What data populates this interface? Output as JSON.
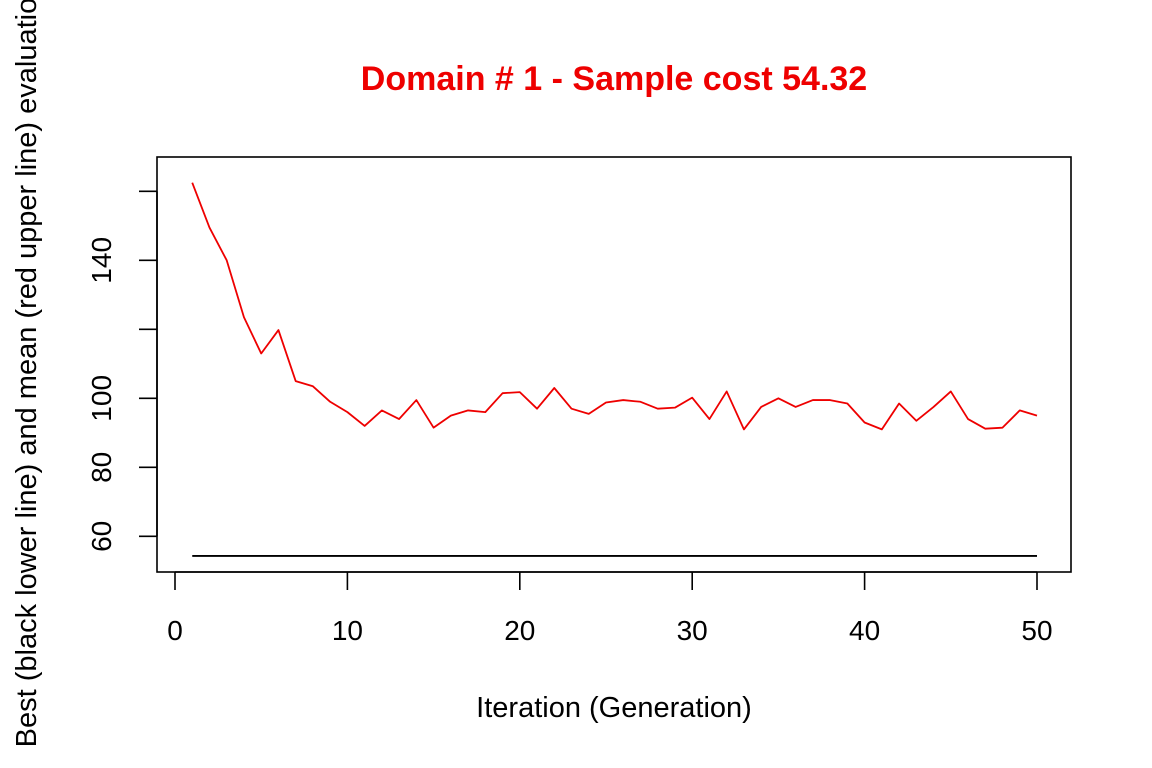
{
  "chart_data": {
    "type": "line",
    "title": "Domain # 1  - Sample cost 54.32",
    "xlabel": "Iteration (Generation)",
    "ylabel": "Best (black lower line) and mean (red upper line) evaluation",
    "xlim": [
      0,
      50
    ],
    "ylim": [
      54.3,
      163
    ],
    "xticks": [
      0,
      10,
      20,
      30,
      40,
      50
    ],
    "yticks": [
      60,
      80,
      100,
      140
    ],
    "grid": false,
    "colors": {
      "title": "#ee0000",
      "mean": "#ee0000",
      "best": "#000000"
    },
    "x": [
      1,
      2,
      3,
      4,
      5,
      6,
      7,
      8,
      9,
      10,
      11,
      12,
      13,
      14,
      15,
      16,
      17,
      18,
      19,
      20,
      21,
      22,
      23,
      24,
      25,
      26,
      27,
      28,
      29,
      30,
      31,
      32,
      33,
      34,
      35,
      36,
      37,
      38,
      39,
      40,
      41,
      42,
      43,
      44,
      45,
      46,
      47,
      48,
      49,
      50
    ],
    "series": [
      {
        "color": "#ee0000",
        "values": [
          162.5,
          149.5,
          140,
          123.5,
          113,
          119.8,
          105,
          103.5,
          99,
          96,
          92,
          96.5,
          94,
          99.5,
          91.5,
          95,
          96.5,
          96,
          101.5,
          101.8,
          97,
          103,
          97,
          95.5,
          98.8,
          99.5,
          99,
          97,
          97.3,
          100.2,
          94,
          102,
          91,
          97.5,
          100,
          97.5,
          99.5,
          99.5,
          98.5,
          93,
          91,
          98.5,
          93.5,
          97.5,
          102,
          94,
          91.2,
          91.5,
          96.5,
          95
        ]
      },
      {
        "color": "#000000",
        "values": [
          54.32,
          54.32,
          54.32,
          54.32,
          54.32,
          54.32,
          54.32,
          54.32,
          54.32,
          54.32,
          54.32,
          54.32,
          54.32,
          54.32,
          54.32,
          54.32,
          54.32,
          54.32,
          54.32,
          54.32,
          54.32,
          54.32,
          54.32,
          54.32,
          54.32,
          54.32,
          54.32,
          54.32,
          54.32,
          54.32,
          54.32,
          54.32,
          54.32,
          54.32,
          54.32,
          54.32,
          54.32,
          54.32,
          54.32,
          54.32,
          54.32,
          54.32,
          54.32,
          54.32,
          54.32,
          54.32,
          54.32,
          54.32,
          54.32,
          54.32
        ]
      }
    ]
  }
}
